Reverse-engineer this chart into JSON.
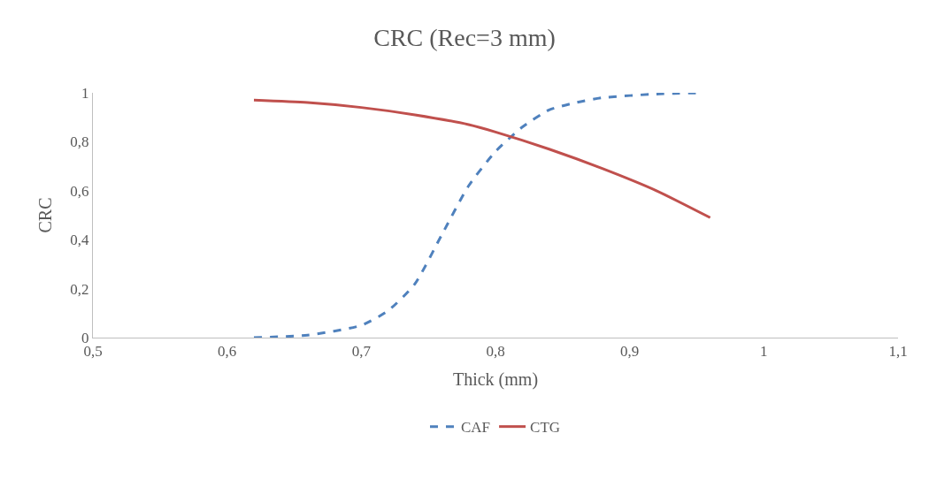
{
  "chart_data": {
    "type": "line",
    "title": "CRC (Rec=3 mm)",
    "xlabel": "Thick (mm)",
    "ylabel": "CRC",
    "xlim": [
      0.5,
      1.1
    ],
    "xticks": [
      {
        "value": 0.5,
        "label": "0,5"
      },
      {
        "value": 0.6,
        "label": "0,6"
      },
      {
        "value": 0.7,
        "label": "0,7"
      },
      {
        "value": 0.8,
        "label": "0,8"
      },
      {
        "value": 0.9,
        "label": "0,9"
      },
      {
        "value": 1,
        "label": "1"
      },
      {
        "value": 1.1,
        "label": "1,1"
      }
    ],
    "ylim": [
      0,
      1
    ],
    "yticks": [
      0,
      {
        "value": 0.2,
        "label": "0,2"
      },
      {
        "value": 0.4,
        "label": "0,4"
      },
      {
        "value": 0.6,
        "label": "0,6"
      },
      {
        "value": 0.8,
        "label": "0,8"
      },
      1
    ],
    "grid": false,
    "legend": "bottom",
    "marker": "none",
    "series": [
      {
        "name": "CAF",
        "color": "#4f81bd",
        "line_style": "dashed",
        "x": [
          0.62,
          0.66,
          0.7,
          0.72,
          0.74,
          0.76,
          0.78,
          0.8,
          0.82,
          0.84,
          0.86,
          0.88,
          0.92,
          0.955
        ],
        "values": [
          0,
          0.01,
          0.05,
          0.11,
          0.22,
          0.42,
          0.62,
          0.76,
          0.86,
          0.93,
          0.96,
          0.98,
          0.995,
          1.0
        ]
      },
      {
        "name": "CTG",
        "color": "#c0504d",
        "line_style": "solid",
        "x": [
          0.62,
          0.66,
          0.7,
          0.74,
          0.78,
          0.8,
          0.84,
          0.88,
          0.92,
          0.96
        ],
        "values": [
          0.97,
          0.96,
          0.94,
          0.91,
          0.87,
          0.84,
          0.77,
          0.69,
          0.6,
          0.49
        ]
      }
    ]
  }
}
